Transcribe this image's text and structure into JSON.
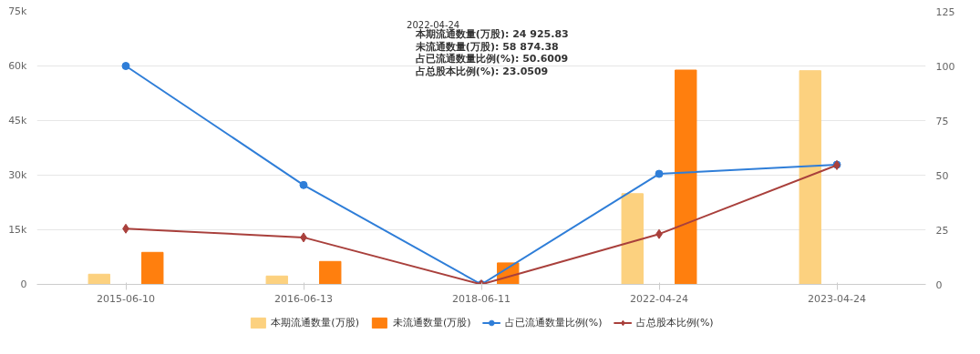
{
  "chart_data": {
    "type": "bar",
    "categories": [
      "2015-06-10",
      "2016-06-13",
      "2018-06-11",
      "2022-04-24",
      "2023-04-24"
    ],
    "series": [
      {
        "name": "本期流通数量(万股)",
        "color": "#fcd17f",
        "values": [
          2800,
          2300,
          0,
          24925.83,
          58700
        ]
      },
      {
        "name": "未流通数量(万股)",
        "color": "#ff7f0e",
        "values": [
          8800,
          6300,
          5900,
          58874.38,
          null
        ]
      },
      {
        "name": "占已流通数量比例(%)",
        "type": "line",
        "axis": "y2",
        "marker": "circle",
        "color": "#2f7ed8",
        "values": [
          100,
          45.5,
          0,
          50.6009,
          54.8
        ]
      },
      {
        "name": "占总股本比例(%)",
        "type": "line",
        "axis": "y2",
        "marker": "diamond",
        "color": "#a9403c",
        "values": [
          25.5,
          21.5,
          0,
          23.0509,
          54.6
        ]
      }
    ],
    "ylim": [
      0,
      75000
    ],
    "yticks": [
      0,
      {
        "value": 15000,
        "label": "15k"
      },
      {
        "value": 30000,
        "label": "30k"
      },
      {
        "value": 45000,
        "label": "45k"
      },
      {
        "value": 60000,
        "label": "60k"
      },
      {
        "value": 75000,
        "label": "75k"
      }
    ],
    "y2lim": [
      0,
      125
    ],
    "y2ticks": [
      0,
      25,
      50,
      75,
      100,
      125
    ],
    "grid": "y",
    "legend": "bottom",
    "annotations": [
      "2022-04-24",
      "本期流通数量(万股): 24 925.83",
      "未流通数量(万股): 58 874.38",
      "占已流通数量比例(%): 50.6009",
      "占总股本比例(%): 23.0509"
    ]
  }
}
